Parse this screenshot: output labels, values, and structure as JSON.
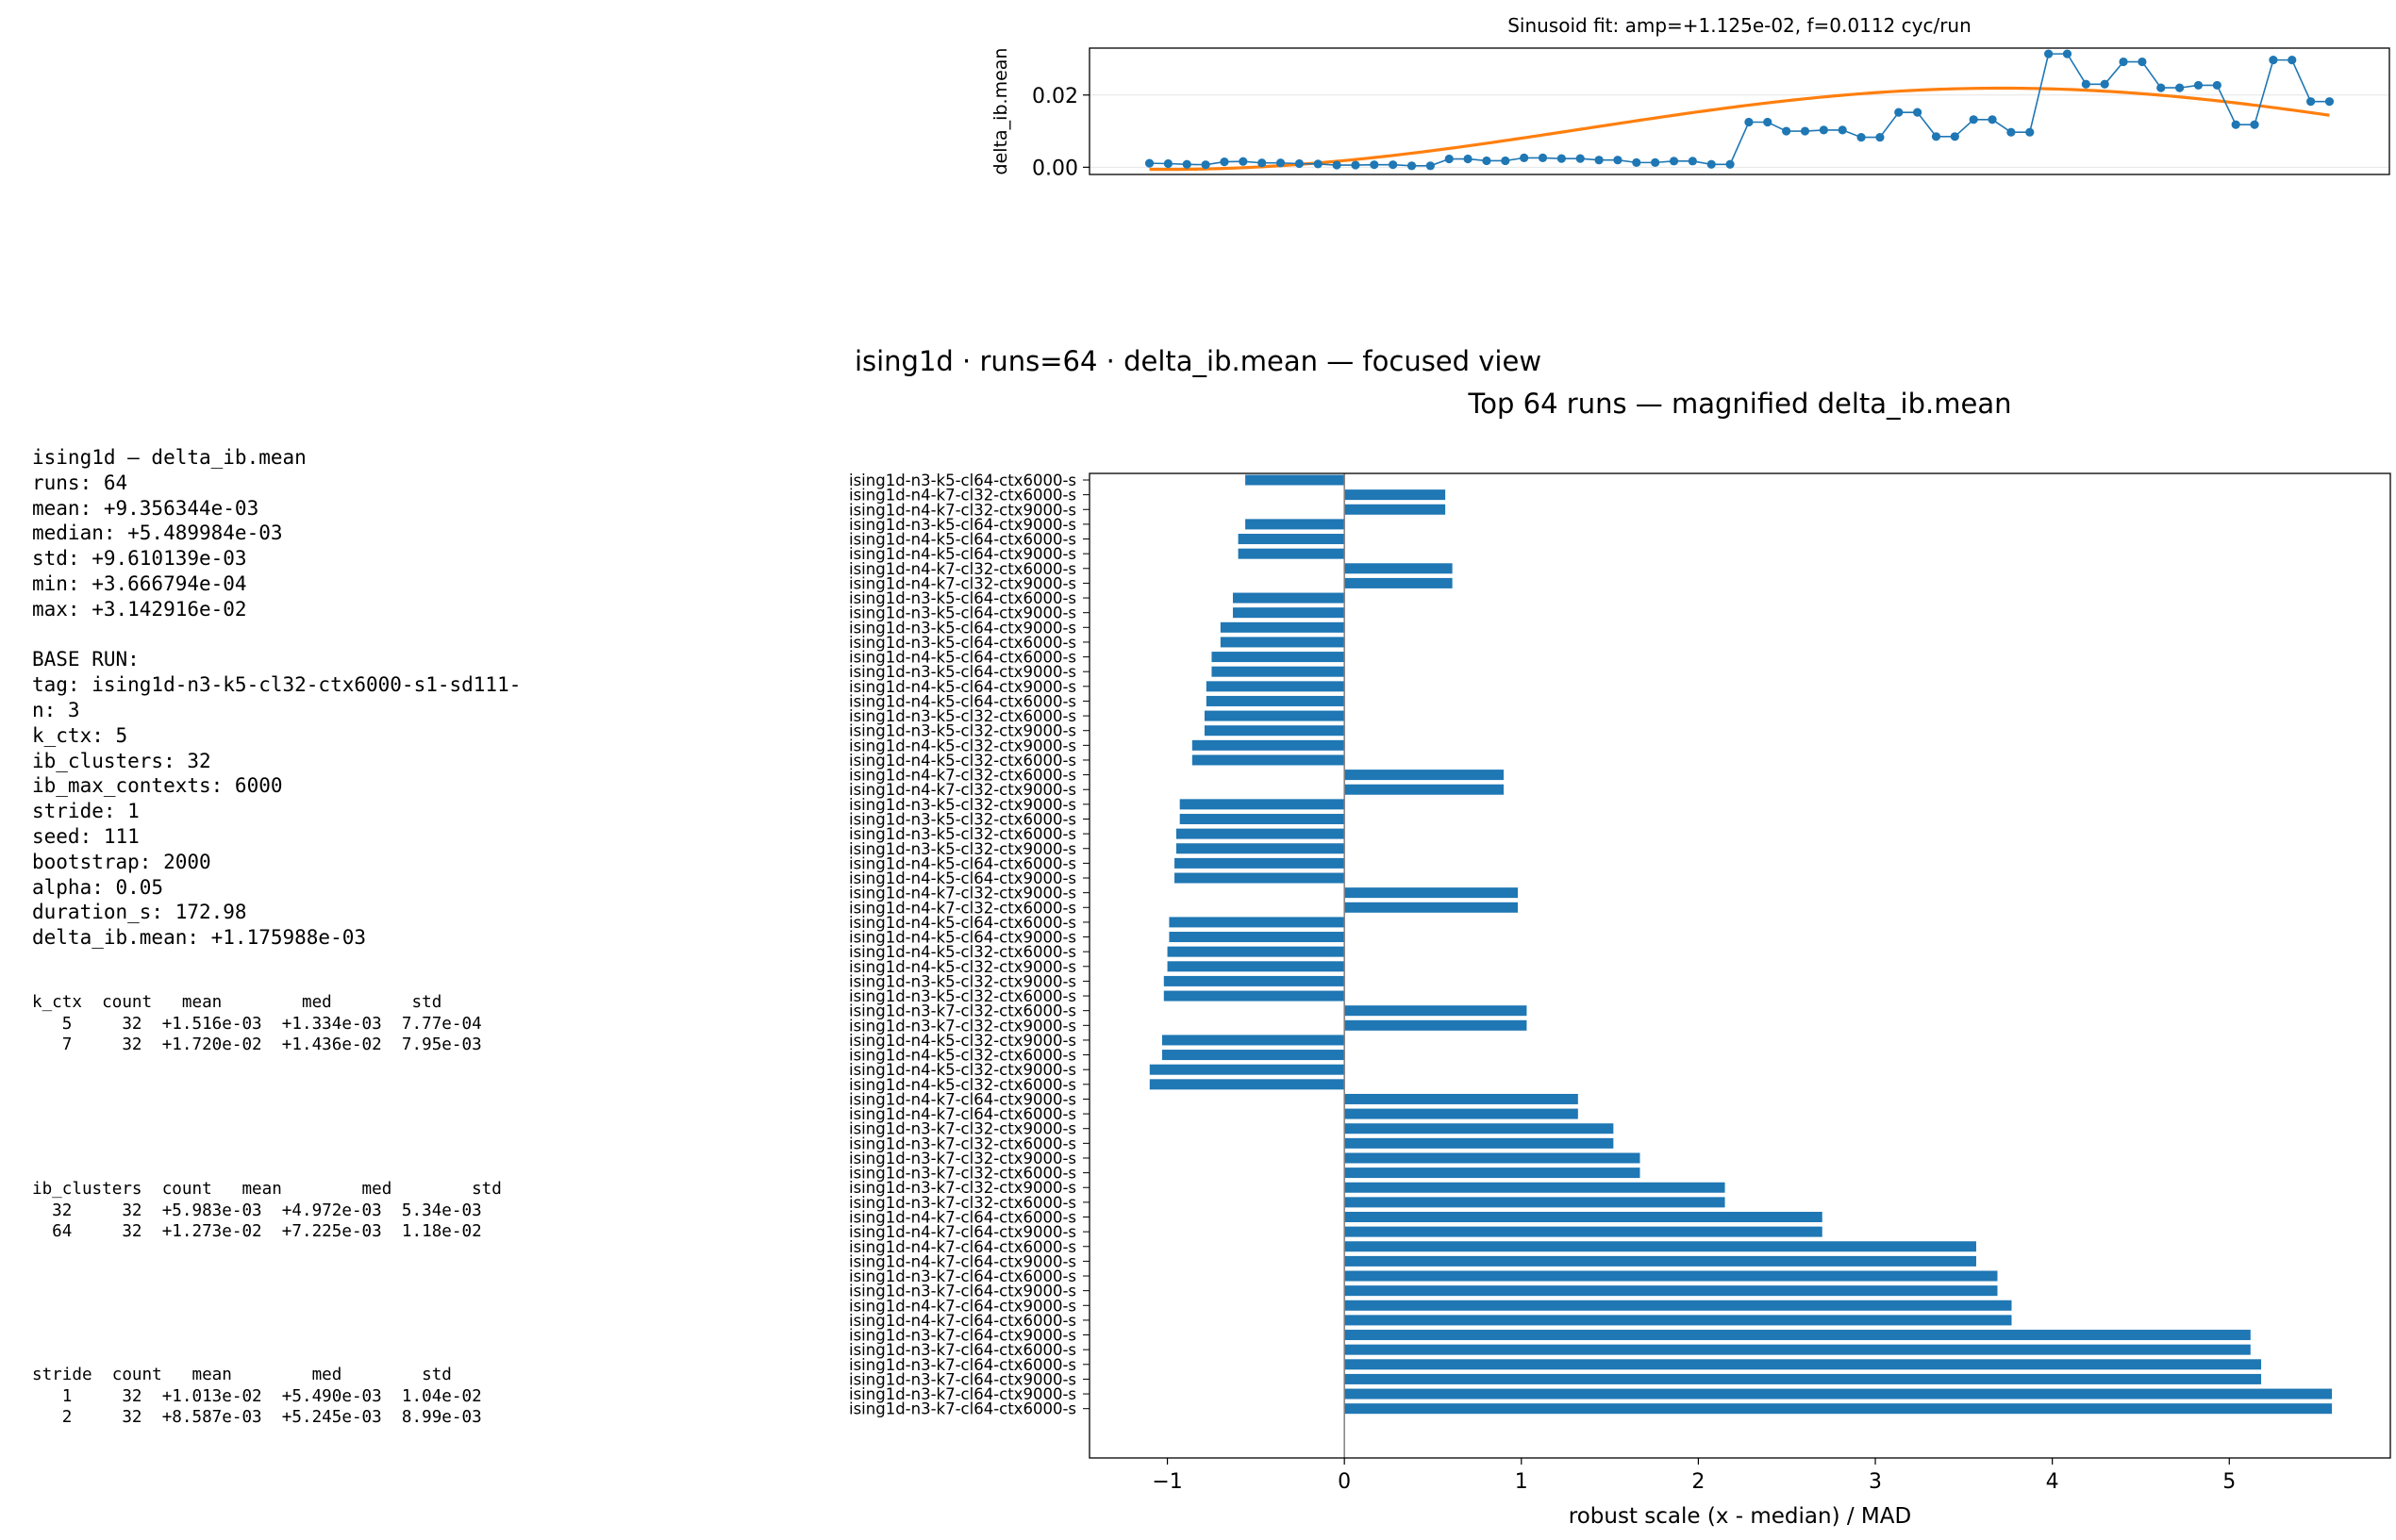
{
  "suptitle": "ising1d · runs=64 · delta_ib.mean — focused view",
  "stats_lines": [
    "ising1d — delta_ib.mean",
    "runs: 64",
    "mean: +9.356344e-03",
    "median: +5.489984e-03",
    "std: +9.610139e-03",
    "min: +3.666794e-04",
    "max: +3.142916e-02",
    "",
    "BASE RUN:",
    "tag: ising1d-n3-k5-cl32-ctx6000-s1-sd111-",
    "n: 3",
    "k_ctx: 5",
    "ib_clusters: 32",
    "ib_max_contexts: 6000",
    "stride: 1",
    "seed: 111",
    "bootstrap: 2000",
    "alpha: 0.05",
    "duration_s: 172.98",
    "delta_ib.mean: +1.175988e-03"
  ],
  "tables": [
    {
      "lines": [
        "k_ctx  count   mean        med        std",
        "   5     32  +1.516e-03  +1.334e-03  7.77e-04",
        "   7     32  +1.720e-02  +1.436e-02  7.95e-03"
      ]
    },
    {
      "lines": [
        "ib_clusters  count   mean        med        std",
        "  32     32  +5.983e-03  +4.972e-03  5.34e-03",
        "  64     32  +1.273e-02  +7.225e-03  1.18e-02"
      ]
    },
    {
      "lines": [
        "stride  count   mean        med        std",
        "   1     32  +1.013e-02  +5.490e-03  1.04e-02",
        "   2     32  +8.587e-03  +5.245e-03  8.99e-03"
      ]
    }
  ],
  "chart_data": [
    {
      "type": "line",
      "title": "Sinusoid fit: amp=+1.125e-02, f=0.0112 cyc/run",
      "xlabel": "",
      "ylabel": "delta_ib.mean",
      "yticks": [
        "0.00",
        "0.02"
      ],
      "ylim": [
        -0.002,
        0.033
      ],
      "xlim": [
        -3.2,
        66.2
      ],
      "x": [
        0,
        1,
        2,
        3,
        4,
        5,
        6,
        7,
        8,
        9,
        10,
        11,
        12,
        13,
        14,
        15,
        16,
        17,
        18,
        19,
        20,
        21,
        22,
        23,
        24,
        25,
        26,
        27,
        28,
        29,
        30,
        31,
        32,
        33,
        34,
        35,
        36,
        37,
        38,
        39,
        40,
        41,
        42,
        43,
        44,
        45,
        46,
        47,
        48,
        49,
        50,
        51,
        52,
        53,
        54,
        55,
        56,
        57,
        58,
        59,
        60,
        61,
        62,
        63
      ],
      "series": [
        {
          "kind": "observed",
          "color": "#1f77b4",
          "values": [
            0.0011,
            0.001,
            0.0008,
            0.0007,
            0.0015,
            0.0016,
            0.0012,
            0.0012,
            0.001,
            0.0009,
            0.0006,
            0.0006,
            0.0007,
            0.0007,
            0.0004,
            0.0004,
            0.0023,
            0.0023,
            0.0018,
            0.0018,
            0.0026,
            0.0026,
            0.0024,
            0.0024,
            0.002,
            0.002,
            0.0013,
            0.0013,
            0.0017,
            0.0017,
            0.0008,
            0.0008,
            0.0125,
            0.0125,
            0.01,
            0.01,
            0.0103,
            0.0103,
            0.0083,
            0.0083,
            0.0152,
            0.0152,
            0.0085,
            0.0085,
            0.0132,
            0.0132,
            0.0097,
            0.0097,
            0.0314,
            0.0314,
            0.023,
            0.023,
            0.0292,
            0.0292,
            0.022,
            0.022,
            0.0227,
            0.0227,
            0.0118,
            0.0118,
            0.0297,
            0.0297,
            0.0182,
            0.0182
          ]
        },
        {
          "kind": "fit",
          "color": "#ff7f0e",
          "amp": 0.01125,
          "freq": 0.0112,
          "offset": 0.01065,
          "phase_run": 45.5
        }
      ]
    },
    {
      "type": "bar",
      "orientation": "horizontal",
      "title": "Top 64 runs — magnified delta_ib.mean",
      "xlabel": "robust scale  (x - median) / MAD",
      "ylabel": "",
      "xlim": [
        -1.44,
        5.91
      ],
      "xticks": [
        -1,
        0,
        1,
        2,
        3,
        4,
        5
      ],
      "color": "#1f77b4",
      "categories": [
        "ising1d-n3-k5-cl64-ctx6000-s",
        "ising1d-n4-k7-cl32-ctx6000-s",
        "ising1d-n4-k7-cl32-ctx9000-s",
        "ising1d-n3-k5-cl64-ctx9000-s",
        "ising1d-n4-k5-cl64-ctx6000-s",
        "ising1d-n4-k5-cl64-ctx9000-s",
        "ising1d-n4-k7-cl32-ctx6000-s",
        "ising1d-n4-k7-cl32-ctx9000-s",
        "ising1d-n3-k5-cl64-ctx6000-s",
        "ising1d-n3-k5-cl64-ctx9000-s",
        "ising1d-n3-k5-cl64-ctx9000-s",
        "ising1d-n3-k5-cl64-ctx6000-s",
        "ising1d-n4-k5-cl64-ctx6000-s",
        "ising1d-n3-k5-cl64-ctx9000-s",
        "ising1d-n4-k5-cl64-ctx9000-s",
        "ising1d-n4-k5-cl64-ctx6000-s",
        "ising1d-n3-k5-cl32-ctx6000-s",
        "ising1d-n3-k5-cl32-ctx9000-s",
        "ising1d-n4-k5-cl32-ctx9000-s",
        "ising1d-n4-k5-cl32-ctx6000-s",
        "ising1d-n4-k7-cl32-ctx6000-s",
        "ising1d-n4-k7-cl32-ctx9000-s",
        "ising1d-n3-k5-cl32-ctx9000-s",
        "ising1d-n3-k5-cl32-ctx6000-s",
        "ising1d-n3-k5-cl32-ctx6000-s",
        "ising1d-n3-k5-cl32-ctx9000-s",
        "ising1d-n4-k5-cl64-ctx6000-s",
        "ising1d-n4-k5-cl64-ctx9000-s",
        "ising1d-n4-k7-cl32-ctx9000-s",
        "ising1d-n4-k7-cl32-ctx6000-s",
        "ising1d-n4-k5-cl64-ctx6000-s",
        "ising1d-n4-k5-cl64-ctx9000-s",
        "ising1d-n4-k5-cl32-ctx6000-s",
        "ising1d-n4-k5-cl32-ctx9000-s",
        "ising1d-n3-k5-cl32-ctx9000-s",
        "ising1d-n3-k5-cl32-ctx6000-s",
        "ising1d-n3-k7-cl32-ctx6000-s",
        "ising1d-n3-k7-cl32-ctx9000-s",
        "ising1d-n4-k5-cl32-ctx9000-s",
        "ising1d-n4-k5-cl32-ctx6000-s",
        "ising1d-n4-k5-cl32-ctx9000-s",
        "ising1d-n4-k5-cl32-ctx6000-s",
        "ising1d-n4-k7-cl64-ctx9000-s",
        "ising1d-n4-k7-cl64-ctx6000-s",
        "ising1d-n3-k7-cl32-ctx9000-s",
        "ising1d-n3-k7-cl32-ctx6000-s",
        "ising1d-n3-k7-cl32-ctx9000-s",
        "ising1d-n3-k7-cl32-ctx6000-s",
        "ising1d-n3-k7-cl32-ctx9000-s",
        "ising1d-n3-k7-cl32-ctx6000-s",
        "ising1d-n4-k7-cl64-ctx6000-s",
        "ising1d-n4-k7-cl64-ctx9000-s",
        "ising1d-n4-k7-cl64-ctx6000-s",
        "ising1d-n4-k7-cl64-ctx9000-s",
        "ising1d-n3-k7-cl64-ctx6000-s",
        "ising1d-n3-k7-cl64-ctx9000-s",
        "ising1d-n4-k7-cl64-ctx9000-s",
        "ising1d-n4-k7-cl64-ctx6000-s",
        "ising1d-n3-k7-cl64-ctx9000-s",
        "ising1d-n3-k7-cl64-ctx6000-s",
        "ising1d-n3-k7-cl64-ctx6000-s",
        "ising1d-n3-k7-cl64-ctx9000-s",
        "ising1d-n3-k7-cl64-ctx9000-s",
        "ising1d-n3-k7-cl64-ctx6000-s"
      ],
      "values": [
        -0.56,
        0.57,
        0.57,
        -0.56,
        -0.6,
        -0.6,
        0.61,
        0.61,
        -0.63,
        -0.63,
        -0.7,
        -0.7,
        -0.75,
        -0.75,
        -0.78,
        -0.78,
        -0.79,
        -0.79,
        -0.86,
        -0.86,
        0.9,
        0.9,
        -0.93,
        -0.93,
        -0.95,
        -0.95,
        -0.96,
        -0.96,
        0.98,
        0.98,
        -0.99,
        -0.99,
        -1.0,
        -1.0,
        -1.02,
        -1.02,
        1.03,
        1.03,
        -1.03,
        -1.03,
        -1.1,
        -1.1,
        1.32,
        1.32,
        1.52,
        1.52,
        1.67,
        1.67,
        2.15,
        2.15,
        2.7,
        2.7,
        3.57,
        3.57,
        3.69,
        3.69,
        3.77,
        3.77,
        5.12,
        5.12,
        5.18,
        5.18,
        5.58,
        5.58
      ]
    }
  ]
}
